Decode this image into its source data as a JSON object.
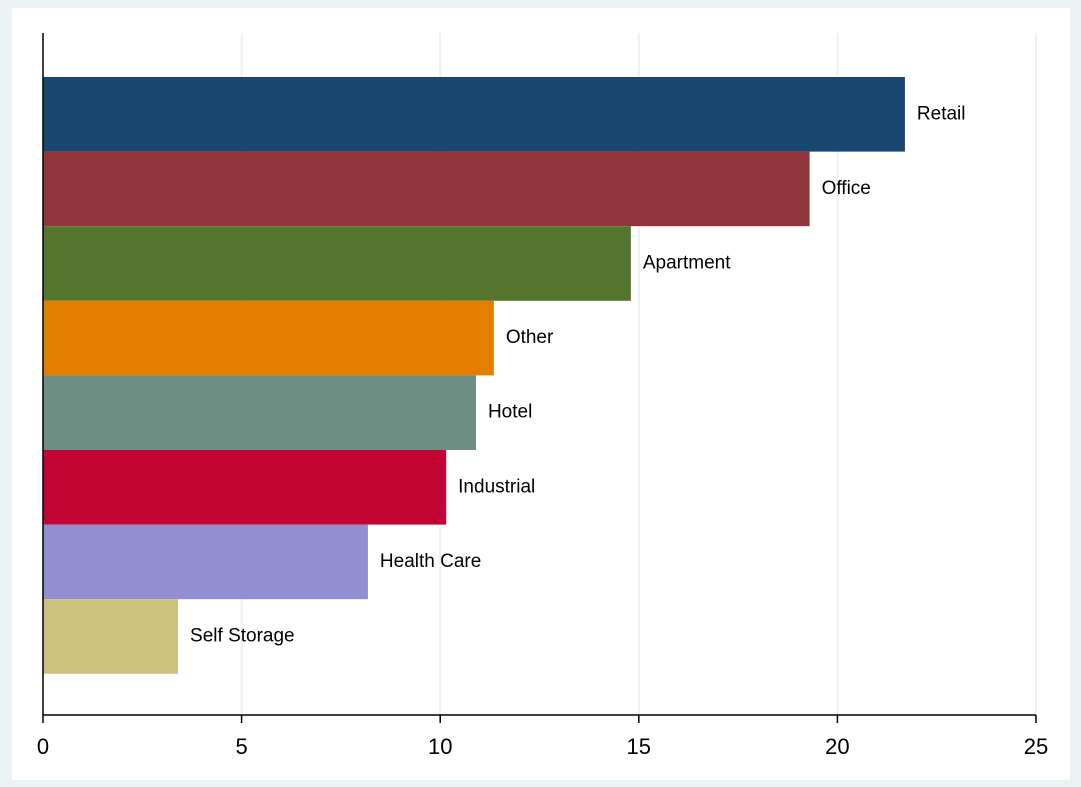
{
  "chart_data": {
    "type": "bar",
    "orientation": "horizontal",
    "categories": [
      "Retail",
      "Office",
      "Apartment",
      "Other",
      "Hotel",
      "Industrial",
      "Health Care",
      "Self Storage"
    ],
    "values": [
      21.7,
      19.3,
      14.8,
      11.35,
      10.9,
      10.15,
      8.18,
      3.4
    ],
    "colors": [
      "#1a476f",
      "#90353b",
      "#55752f",
      "#e37e00",
      "#6e8e84",
      "#c10534",
      "#938dd2",
      "#cac27e"
    ],
    "xlim": [
      0,
      25
    ],
    "xticks": [
      0,
      5,
      10,
      15,
      20,
      25
    ],
    "grid": true
  }
}
